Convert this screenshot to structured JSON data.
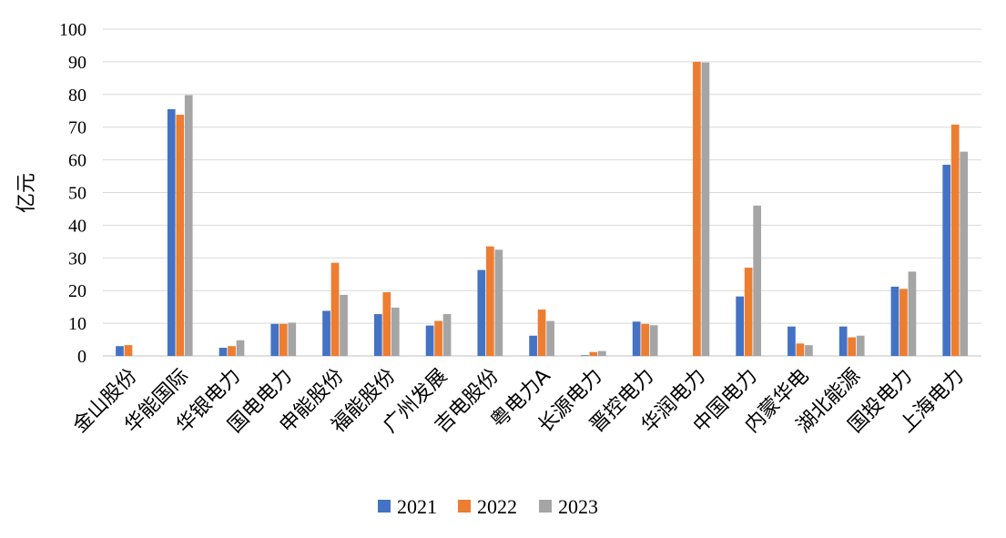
{
  "chart_data": {
    "type": "bar",
    "title": "",
    "xlabel": "",
    "ylabel": "亿元",
    "ylim": [
      0,
      100
    ],
    "yticks": [
      0,
      10,
      20,
      30,
      40,
      50,
      60,
      70,
      80,
      90,
      100
    ],
    "grid": true,
    "legend_position": "bottom",
    "categories": [
      "金山股份",
      "华能国际",
      "华银电力",
      "国电电力",
      "申能股份",
      "福能股份",
      "广州发展",
      "吉电股份",
      "粤电力A",
      "长源电力",
      "晋控电力",
      "华润电力",
      "中国电力",
      "内蒙华电",
      "湖北能源",
      "国投电力",
      "上海电力"
    ],
    "series": [
      {
        "name": "2021",
        "color": "#4472c4",
        "values": [
          3.0,
          75.5,
          2.5,
          9.8,
          13.8,
          12.8,
          9.3,
          26.3,
          6.2,
          0.2,
          10.5,
          0,
          18.2,
          9.0,
          9.0,
          21.2,
          58.5
        ]
      },
      {
        "name": "2022",
        "color": "#ed7d31",
        "values": [
          3.3,
          73.8,
          3.0,
          9.8,
          28.5,
          19.5,
          10.7,
          33.5,
          14.2,
          1.2,
          9.8,
          90.0,
          27.0,
          3.8,
          5.7,
          20.5,
          70.8
        ]
      },
      {
        "name": "2023",
        "color": "#a5a5a5",
        "values": [
          0,
          79.8,
          4.8,
          10.2,
          18.7,
          14.8,
          12.8,
          32.5,
          10.7,
          1.5,
          9.4,
          89.8,
          46.0,
          3.3,
          6.2,
          25.8,
          62.5
        ]
      }
    ]
  }
}
